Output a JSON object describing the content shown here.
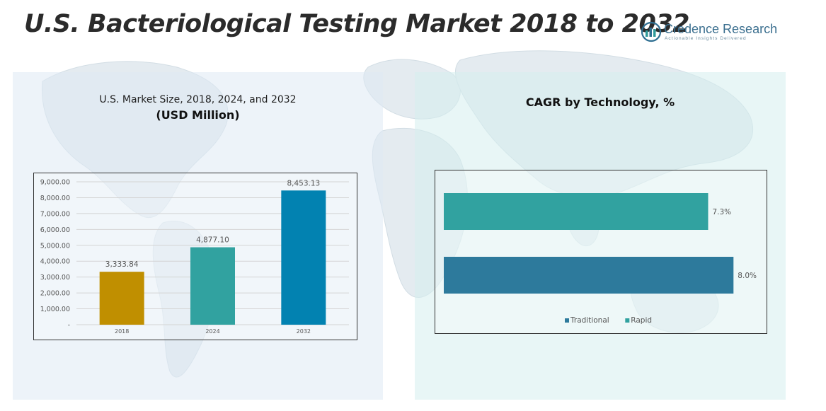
{
  "title": "U.S. Bacteriological Testing Market 2018 to 2032",
  "logo": {
    "name": "Credence Research",
    "tagline": "Actionable Insights Delivered",
    "colors": [
      "#2f9a9a",
      "#2f6f92"
    ]
  },
  "map_color": "#dde6ec",
  "chart_data": [
    {
      "type": "bar",
      "title": "U.S. Market Size, 2018, 2024, and 2032",
      "subtitle": "(USD Million)",
      "categories": [
        "2018",
        "2024",
        "2032"
      ],
      "values": [
        3333.84,
        4877.1,
        8453.13
      ],
      "value_labels": [
        "3,333.84",
        "4,877.10",
        "8,453.13"
      ],
      "colors": [
        "#c08f00",
        "#31a2a0",
        "#0282b1"
      ],
      "ylim": [
        0,
        9000
      ],
      "yticks": [
        0,
        1000,
        2000,
        3000,
        4000,
        5000,
        6000,
        7000,
        8000,
        9000
      ],
      "ytick_labels": [
        "-",
        "1,000.00",
        "2,000.00",
        "3,000.00",
        "4,000.00",
        "5,000.00",
        "6,000.00",
        "7,000.00",
        "8,000.00",
        "9,000.00"
      ],
      "grid": true,
      "legend": "none"
    },
    {
      "type": "bar",
      "orientation": "horizontal",
      "title": "CAGR by Technology, %",
      "categories": [
        "Traditional",
        "Rapid"
      ],
      "values": [
        8.0,
        7.3
      ],
      "value_labels": [
        "8.0%",
        "7.3%"
      ],
      "colors": [
        "#2d7a9c",
        "#31a2a0"
      ],
      "xlim": [
        0,
        8.6
      ],
      "legend": "bottom-center",
      "legend_labels": [
        "Traditional",
        "Rapid"
      ]
    }
  ]
}
